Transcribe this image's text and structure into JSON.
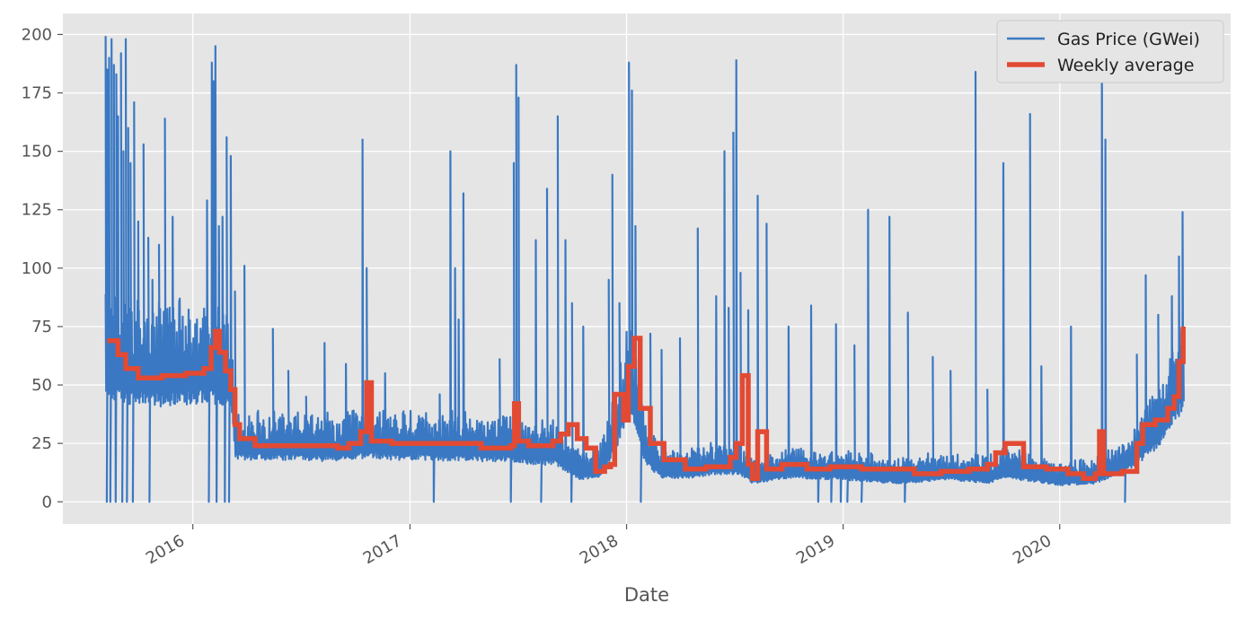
{
  "chart_data": {
    "type": "line",
    "title": "",
    "xlabel": "Date",
    "ylabel": "",
    "xlim": [
      "2015-05-27",
      "2020-10-15"
    ],
    "ylim": [
      -9.5,
      209
    ],
    "grid": true,
    "legend_position": "top-right",
    "x_ticks": [
      {
        "date": "2016-01-01",
        "label": "2016"
      },
      {
        "date": "2017-01-01",
        "label": "2017"
      },
      {
        "date": "2018-01-01",
        "label": "2018"
      },
      {
        "date": "2019-01-01",
        "label": "2019"
      },
      {
        "date": "2020-01-01",
        "label": "2020"
      }
    ],
    "y_ticks": [
      0,
      25,
      50,
      75,
      100,
      125,
      150,
      175,
      200
    ],
    "colors": {
      "gas": "#3a78c3",
      "weekly": "#e24a33",
      "plot_bg": "#e5e5e5",
      "grid": "#ffffff",
      "text": "#555555"
    },
    "series": [
      {
        "name": "Gas Price (GWei)",
        "kind": "raw",
        "style": "thin",
        "baseline": [
          [
            "2015-08-07",
            56
          ],
          [
            "2015-09-15",
            53
          ],
          [
            "2015-11-01",
            52
          ],
          [
            "2015-12-15",
            53
          ],
          [
            "2016-01-20",
            54
          ],
          [
            "2016-02-20",
            52
          ],
          [
            "2016-03-05",
            50
          ],
          [
            "2016-03-12",
            23
          ],
          [
            "2016-06-01",
            23
          ],
          [
            "2016-09-01",
            22
          ],
          [
            "2016-10-20",
            24
          ],
          [
            "2016-12-01",
            23
          ],
          [
            "2017-06-01",
            22
          ],
          [
            "2017-07-01",
            21
          ],
          [
            "2017-09-01",
            20
          ],
          [
            "2017-10-15",
            12
          ],
          [
            "2017-11-20",
            14
          ],
          [
            "2017-12-15",
            30
          ],
          [
            "2018-01-05",
            50
          ],
          [
            "2018-02-01",
            20
          ],
          [
            "2018-03-01",
            13
          ],
          [
            "2018-04-15",
            13
          ],
          [
            "2018-06-01",
            15
          ],
          [
            "2018-07-10",
            15
          ],
          [
            "2018-08-01",
            10
          ],
          [
            "2018-10-01",
            13
          ],
          [
            "2019-01-01",
            12
          ],
          [
            "2019-04-01",
            10
          ],
          [
            "2019-07-01",
            12
          ],
          [
            "2019-09-01",
            10
          ],
          [
            "2019-10-01",
            13
          ],
          [
            "2020-01-01",
            9
          ],
          [
            "2020-03-01",
            10
          ],
          [
            "2020-05-01",
            18
          ],
          [
            "2020-06-15",
            30
          ],
          [
            "2020-07-27",
            50
          ]
        ],
        "spikes": [
          [
            "2015-08-07",
            199
          ],
          [
            "2015-08-10",
            185
          ],
          [
            "2015-08-13",
            190
          ],
          [
            "2015-08-17",
            198
          ],
          [
            "2015-08-21",
            187
          ],
          [
            "2015-08-25",
            183
          ],
          [
            "2015-08-28",
            165
          ],
          [
            "2015-09-02",
            192
          ],
          [
            "2015-09-06",
            150
          ],
          [
            "2015-09-10",
            198
          ],
          [
            "2015-09-14",
            160
          ],
          [
            "2015-09-18",
            145
          ],
          [
            "2015-09-24",
            171
          ],
          [
            "2015-10-01",
            120
          ],
          [
            "2015-10-10",
            153
          ],
          [
            "2015-10-18",
            113
          ],
          [
            "2015-10-25",
            95
          ],
          [
            "2015-11-05",
            110
          ],
          [
            "2015-11-15",
            164
          ],
          [
            "2015-11-28",
            122
          ],
          [
            "2015-12-10",
            87
          ],
          [
            "2015-12-20",
            75
          ],
          [
            "2016-01-05",
            76
          ],
          [
            "2016-01-25",
            129
          ],
          [
            "2016-02-02",
            188
          ],
          [
            "2016-02-05",
            180
          ],
          [
            "2016-02-08",
            195
          ],
          [
            "2016-02-14",
            118
          ],
          [
            "2016-02-20",
            122
          ],
          [
            "2016-02-27",
            156
          ],
          [
            "2016-03-05",
            148
          ],
          [
            "2016-03-12",
            90
          ],
          [
            "2016-03-28",
            101
          ],
          [
            "2016-04-20",
            39
          ],
          [
            "2016-05-15",
            74
          ],
          [
            "2016-06-10",
            56
          ],
          [
            "2016-07-10",
            45
          ],
          [
            "2016-08-10",
            68
          ],
          [
            "2016-09-15",
            59
          ],
          [
            "2016-10-13",
            155
          ],
          [
            "2016-10-20",
            100
          ],
          [
            "2016-11-20",
            55
          ],
          [
            "2016-12-20",
            38
          ],
          [
            "2017-02-20",
            46
          ],
          [
            "2017-03-10",
            150
          ],
          [
            "2017-03-18",
            100
          ],
          [
            "2017-03-24",
            78
          ],
          [
            "2017-04-01",
            132
          ],
          [
            "2017-05-01",
            33
          ],
          [
            "2017-06-01",
            61
          ],
          [
            "2017-06-25",
            145
          ],
          [
            "2017-06-29",
            187
          ],
          [
            "2017-07-03",
            173
          ],
          [
            "2017-08-01",
            112
          ],
          [
            "2017-08-20",
            134
          ],
          [
            "2017-09-07",
            165
          ],
          [
            "2017-09-20",
            112
          ],
          [
            "2017-10-01",
            85
          ],
          [
            "2017-10-20",
            75
          ],
          [
            "2017-12-02",
            95
          ],
          [
            "2017-12-08",
            140
          ],
          [
            "2017-12-20",
            85
          ],
          [
            "2018-01-05",
            188
          ],
          [
            "2018-01-10",
            176
          ],
          [
            "2018-01-16",
            118
          ],
          [
            "2018-02-10",
            72
          ],
          [
            "2018-03-01",
            65
          ],
          [
            "2018-04-01",
            70
          ],
          [
            "2018-05-01",
            117
          ],
          [
            "2018-06-01",
            88
          ],
          [
            "2018-06-15",
            150
          ],
          [
            "2018-06-22",
            83
          ],
          [
            "2018-06-30",
            158
          ],
          [
            "2018-07-05",
            189
          ],
          [
            "2018-07-12",
            98
          ],
          [
            "2018-07-25",
            82
          ],
          [
            "2018-08-10",
            131
          ],
          [
            "2018-08-25",
            119
          ],
          [
            "2018-10-01",
            75
          ],
          [
            "2018-11-08",
            84
          ],
          [
            "2018-12-20",
            76
          ],
          [
            "2019-01-20",
            67
          ],
          [
            "2019-02-12",
            125
          ],
          [
            "2019-03-20",
            122
          ],
          [
            "2019-04-20",
            81
          ],
          [
            "2019-06-01",
            62
          ],
          [
            "2019-07-01",
            56
          ],
          [
            "2019-08-12",
            184
          ],
          [
            "2019-09-01",
            48
          ],
          [
            "2019-09-28",
            145
          ],
          [
            "2019-11-12",
            166
          ],
          [
            "2019-12-01",
            58
          ],
          [
            "2020-01-20",
            75
          ],
          [
            "2020-03-12",
            195
          ],
          [
            "2020-03-18",
            155
          ],
          [
            "2020-05-10",
            63
          ],
          [
            "2020-05-25",
            97
          ],
          [
            "2020-06-15",
            80
          ],
          [
            "2020-07-08",
            88
          ],
          [
            "2020-07-20",
            105
          ],
          [
            "2020-07-26",
            124
          ]
        ],
        "drops": [
          "2015-08-09",
          "2015-08-15",
          "2015-08-24",
          "2015-09-04",
          "2015-09-12",
          "2015-09-22",
          "2015-10-20",
          "2016-01-28",
          "2016-02-10",
          "2016-02-24",
          "2016-03-02",
          "2017-02-10",
          "2017-06-20",
          "2017-08-10",
          "2017-09-30",
          "2018-01-25",
          "2018-11-20",
          "2018-12-12",
          "2018-12-28",
          "2019-01-08",
          "2019-02-01",
          "2019-04-15",
          "2020-04-20"
        ]
      },
      {
        "name": "Weekly average",
        "kind": "step",
        "style": "thick",
        "x": [
          "2015-08-10",
          "2015-08-28",
          "2015-09-10",
          "2015-10-01",
          "2015-11-10",
          "2015-12-20",
          "2016-01-20",
          "2016-02-01",
          "2016-02-08",
          "2016-02-15",
          "2016-02-25",
          "2016-03-05",
          "2016-03-12",
          "2016-03-20",
          "2016-04-15",
          "2016-09-01",
          "2016-09-20",
          "2016-10-10",
          "2016-10-20",
          "2016-10-28",
          "2016-12-01",
          "2017-05-01",
          "2017-06-20",
          "2017-06-26",
          "2017-07-03",
          "2017-07-20",
          "2017-08-30",
          "2017-09-12",
          "2017-09-25",
          "2017-10-10",
          "2017-10-25",
          "2017-11-10",
          "2017-11-25",
          "2017-12-05",
          "2017-12-12",
          "2017-12-27",
          "2018-01-04",
          "2018-01-14",
          "2018-01-24",
          "2018-02-10",
          "2018-03-05",
          "2018-04-10",
          "2018-05-15",
          "2018-06-25",
          "2018-07-05",
          "2018-07-15",
          "2018-07-25",
          "2018-08-01",
          "2018-08-10",
          "2018-08-25",
          "2018-09-20",
          "2018-11-01",
          "2018-12-10",
          "2019-02-01",
          "2019-05-01",
          "2019-06-15",
          "2019-08-01",
          "2019-09-01",
          "2019-09-15",
          "2019-10-01",
          "2019-11-01",
          "2019-12-10",
          "2020-01-15",
          "2020-02-10",
          "2020-03-01",
          "2020-03-08",
          "2020-03-15",
          "2020-04-15",
          "2020-05-10",
          "2020-05-20",
          "2020-06-10",
          "2020-07-01",
          "2020-07-12",
          "2020-07-20",
          "2020-07-27"
        ],
        "values": [
          69,
          63,
          57,
          53,
          54,
          55,
          57,
          66,
          73,
          64,
          56,
          48,
          33,
          27,
          24,
          23,
          25,
          30,
          51,
          26,
          25,
          23,
          24,
          42,
          26,
          24,
          26,
          29,
          33,
          27,
          23,
          13,
          15,
          16,
          46,
          35,
          58,
          70,
          40,
          25,
          18,
          14,
          15,
          19,
          25,
          54,
          16,
          10,
          30,
          14,
          16,
          14,
          15,
          14,
          12,
          13,
          14,
          16,
          21,
          25,
          15,
          14,
          12,
          10,
          12,
          30,
          12,
          13,
          25,
          33,
          35,
          40,
          45,
          60,
          75
        ]
      }
    ]
  }
}
